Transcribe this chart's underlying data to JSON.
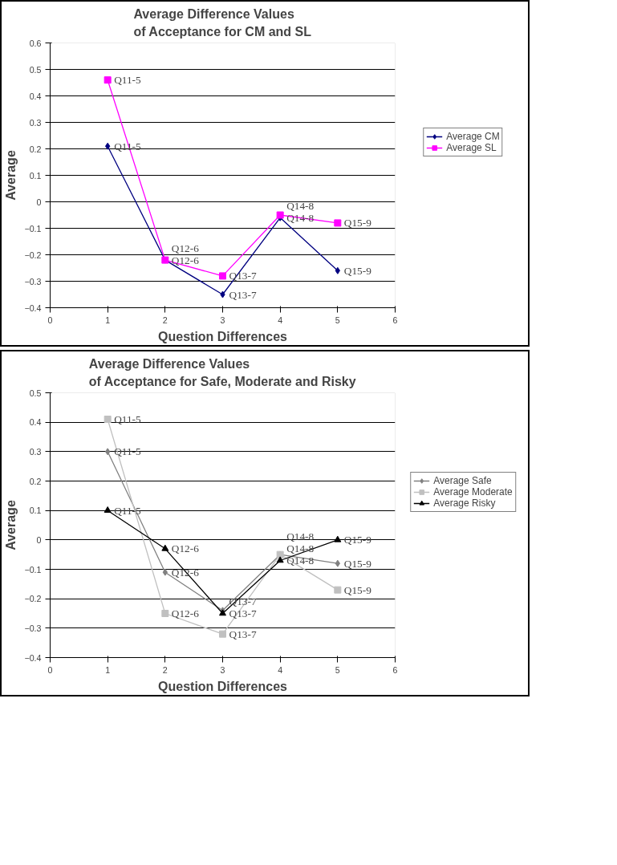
{
  "chart_data": [
    {
      "type": "line",
      "title": "Average Difference Values\nof Acceptance for CM and SL",
      "xlabel": "Question Differences",
      "ylabel": "Average",
      "x": [
        1,
        2,
        3,
        4,
        5
      ],
      "xlim": [
        0,
        6
      ],
      "xticks": [
        0,
        1,
        2,
        3,
        4,
        5,
        6
      ],
      "ylim": [
        -0.4,
        0.6
      ],
      "yticks": [
        -0.4,
        -0.3,
        -0.2,
        -0.1,
        0,
        0.1,
        0.2,
        0.3,
        0.4,
        0.5,
        0.6
      ],
      "grid": "y",
      "legend": "right",
      "series": [
        {
          "name": "Average CM",
          "color": "#000080",
          "marker": "diamond",
          "values": [
            0.21,
            -0.22,
            -0.35,
            -0.06,
            -0.26
          ],
          "value_labels": [
            "Q11-5",
            "Q12-6",
            "Q13-7",
            "Q14-8",
            "Q15-9"
          ]
        },
        {
          "name": "Average SL",
          "color": "#ff00ff",
          "marker": "square",
          "values": [
            0.46,
            -0.22,
            -0.28,
            -0.05,
            -0.08
          ],
          "value_labels": [
            "Q11-5",
            "Q12-6",
            "Q13-7",
            "Q14-8",
            "Q15-9"
          ]
        }
      ]
    },
    {
      "type": "line",
      "title": "Average Difference Values\nof Acceptance for Safe, Moderate and Risky",
      "xlabel": "Question Differences",
      "ylabel": "Average",
      "x": [
        1,
        2,
        3,
        4,
        5
      ],
      "xlim": [
        0,
        6
      ],
      "xticks": [
        0,
        1,
        2,
        3,
        4,
        5,
        6
      ],
      "ylim": [
        -0.4,
        0.5
      ],
      "yticks": [
        -0.4,
        -0.3,
        -0.2,
        -0.1,
        0,
        0.1,
        0.2,
        0.3,
        0.4,
        0.5
      ],
      "grid": "y",
      "legend": "right",
      "series": [
        {
          "name": "Average Safe",
          "color": "#808080",
          "marker": "diamond",
          "values": [
            0.3,
            -0.11,
            -0.24,
            -0.05,
            -0.08
          ],
          "value_labels": [
            "Q11-5",
            "Q12-6",
            "Q13-7",
            "Q14-8",
            "Q15-9"
          ]
        },
        {
          "name": "Average Moderate",
          "color": "#c0c0c0",
          "marker": "square",
          "values": [
            0.41,
            -0.25,
            -0.32,
            -0.05,
            -0.17
          ],
          "value_labels": [
            "Q11-5",
            "Q12-6",
            "Q13-7",
            "Q14-8",
            "Q15-9"
          ]
        },
        {
          "name": "Average Risky",
          "color": "#000000",
          "marker": "triangle",
          "values": [
            0.1,
            -0.03,
            -0.25,
            -0.07,
            0
          ],
          "value_labels": [
            "Q11-5",
            "Q12-6",
            "Q13-7",
            "Q14-8",
            "Q15-9"
          ]
        }
      ]
    }
  ]
}
